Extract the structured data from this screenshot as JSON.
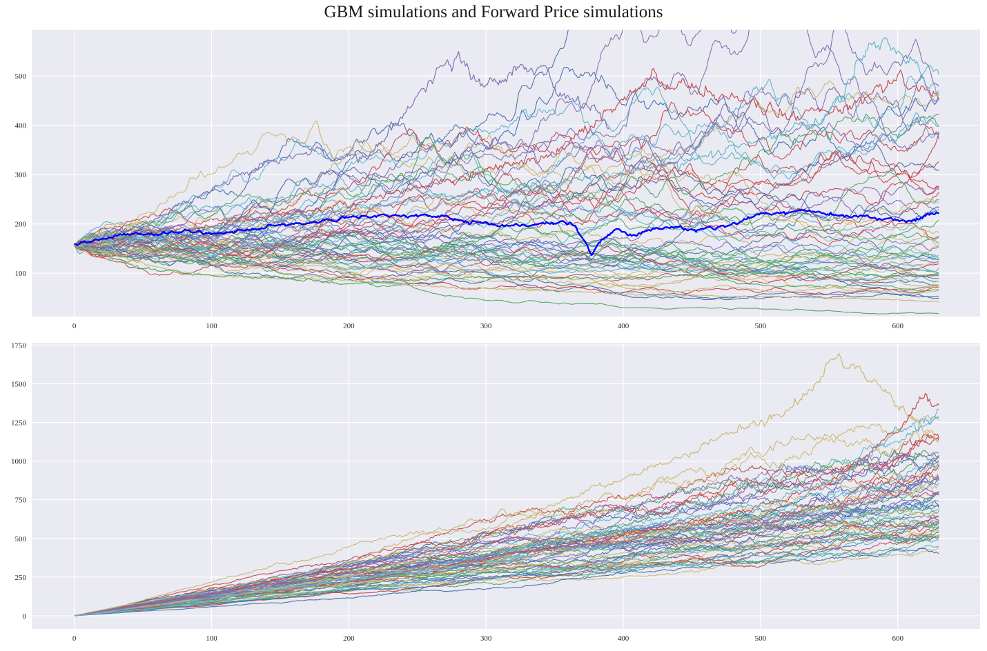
{
  "title": "GBM simulations and Forward Price simulations",
  "colors": {
    "background": "#eaeaf2",
    "grid": "#ffffff",
    "highlight": "#0000ff",
    "palette": [
      "#4c72b0",
      "#55a868",
      "#c44e52",
      "#8172b2",
      "#ccb974",
      "#64b5cd"
    ]
  },
  "chart_data": [
    {
      "type": "line",
      "title": "",
      "xlabel": "",
      "ylabel": "",
      "xlim": [
        -31,
        660
      ],
      "ylim": [
        12,
        594
      ],
      "xticks": [
        0,
        100,
        200,
        300,
        400,
        500,
        600
      ],
      "yticks": [
        100,
        200,
        300,
        400,
        500
      ],
      "grid": true,
      "n_steps": 630,
      "start_value": 157,
      "n_simulated_paths": 60,
      "highlighted_series": {
        "color": "#0000ff",
        "keypoints": [
          [
            0,
            158
          ],
          [
            20,
            168
          ],
          [
            40,
            180
          ],
          [
            60,
            178
          ],
          [
            80,
            188
          ],
          [
            100,
            180
          ],
          [
            130,
            190
          ],
          [
            160,
            198
          ],
          [
            190,
            210
          ],
          [
            210,
            216
          ],
          [
            240,
            218
          ],
          [
            270,
            214
          ],
          [
            300,
            198
          ],
          [
            340,
            197
          ],
          [
            355,
            208
          ],
          [
            365,
            195
          ],
          [
            372,
            165
          ],
          [
            377,
            140
          ],
          [
            385,
            168
          ],
          [
            395,
            185
          ],
          [
            410,
            178
          ],
          [
            430,
            195
          ],
          [
            450,
            188
          ],
          [
            470,
            195
          ],
          [
            500,
            218
          ],
          [
            530,
            228
          ],
          [
            560,
            215
          ],
          [
            580,
            213
          ],
          [
            600,
            207
          ],
          [
            615,
            210
          ],
          [
            625,
            222
          ],
          [
            630,
            222
          ]
        ]
      },
      "notable_series": [
        {
          "color": "#8172b2",
          "keypoints": [
            [
              0,
              157
            ],
            [
              50,
              195
            ],
            [
              100,
              270
            ],
            [
              140,
              320
            ],
            [
              175,
              345
            ],
            [
              210,
              330
            ],
            [
              240,
              420
            ],
            [
              265,
              510
            ],
            [
              280,
              540
            ],
            [
              300,
              475
            ],
            [
              320,
              505
            ],
            [
              340,
              510
            ],
            [
              370,
              440
            ],
            [
              390,
              410
            ]
          ]
        },
        {
          "color": "#64b5cd",
          "keypoints": [
            [
              0,
              157
            ],
            [
              200,
              230
            ],
            [
              400,
              300
            ],
            [
              500,
              365
            ],
            [
              550,
              420
            ],
            [
              575,
              545
            ],
            [
              590,
              565
            ],
            [
              615,
              510
            ],
            [
              630,
              455
            ]
          ]
        },
        {
          "color": "#c44e52",
          "keypoints": [
            [
              0,
              157
            ],
            [
              200,
              240
            ],
            [
              350,
              340
            ],
            [
              420,
              490
            ],
            [
              460,
              470
            ],
            [
              520,
              420
            ],
            [
              560,
              430
            ],
            [
              600,
              495
            ],
            [
              630,
              460
            ]
          ]
        },
        {
          "color": "#ccb974",
          "keypoints": [
            [
              0,
              157
            ],
            [
              40,
              130
            ],
            [
              80,
              100
            ],
            [
              150,
              90
            ],
            [
              200,
              85
            ],
            [
              280,
              70
            ],
            [
              350,
              65
            ],
            [
              420,
              55
            ],
            [
              500,
              52
            ],
            [
              560,
              50
            ],
            [
              630,
              42
            ]
          ]
        },
        {
          "color": "#55a868",
          "keypoints": [
            [
              0,
              157
            ],
            [
              50,
              110
            ],
            [
              100,
              95
            ],
            [
              150,
              90
            ],
            [
              200,
              80
            ],
            [
              300,
              92
            ],
            [
              400,
              90
            ],
            [
              500,
              100
            ],
            [
              600,
              95
            ],
            [
              630,
              95
            ]
          ]
        }
      ]
    },
    {
      "type": "line",
      "title": "",
      "xlabel": "",
      "ylabel": "",
      "xlim": [
        -31,
        660
      ],
      "ylim": [
        -85,
        1765
      ],
      "xticks": [
        0,
        100,
        200,
        300,
        400,
        500,
        600
      ],
      "yticks": [
        0,
        250,
        500,
        750,
        1000,
        1250,
        1500,
        1750
      ],
      "grid": true,
      "n_steps": 630,
      "start_value": 0,
      "n_simulated_paths": 60,
      "notable_series": [
        {
          "color": "#ccb974",
          "keypoints": [
            [
              0,
              0
            ],
            [
              100,
              110
            ],
            [
              200,
              250
            ],
            [
              300,
              500
            ],
            [
              350,
              720
            ],
            [
              400,
              900
            ],
            [
              450,
              1050
            ],
            [
              480,
              1200
            ],
            [
              500,
              1250
            ],
            [
              530,
              1400
            ],
            [
              555,
              1650
            ],
            [
              570,
              1620
            ],
            [
              590,
              1450
            ],
            [
              610,
              1280
            ],
            [
              630,
              1120
            ]
          ]
        },
        {
          "color": "#c44e52",
          "keypoints": [
            [
              0,
              0
            ],
            [
              200,
              220
            ],
            [
              400,
              520
            ],
            [
              500,
              700
            ],
            [
              550,
              860
            ],
            [
              600,
              1200
            ],
            [
              620,
              1420
            ],
            [
              630,
              1350
            ]
          ]
        },
        {
          "color": "#64b5cd",
          "keypoints": [
            [
              0,
              0
            ],
            [
              200,
              225
            ],
            [
              400,
              560
            ],
            [
              500,
              720
            ],
            [
              560,
              900
            ],
            [
              600,
              1200
            ],
            [
              630,
              1290
            ]
          ]
        }
      ]
    }
  ]
}
